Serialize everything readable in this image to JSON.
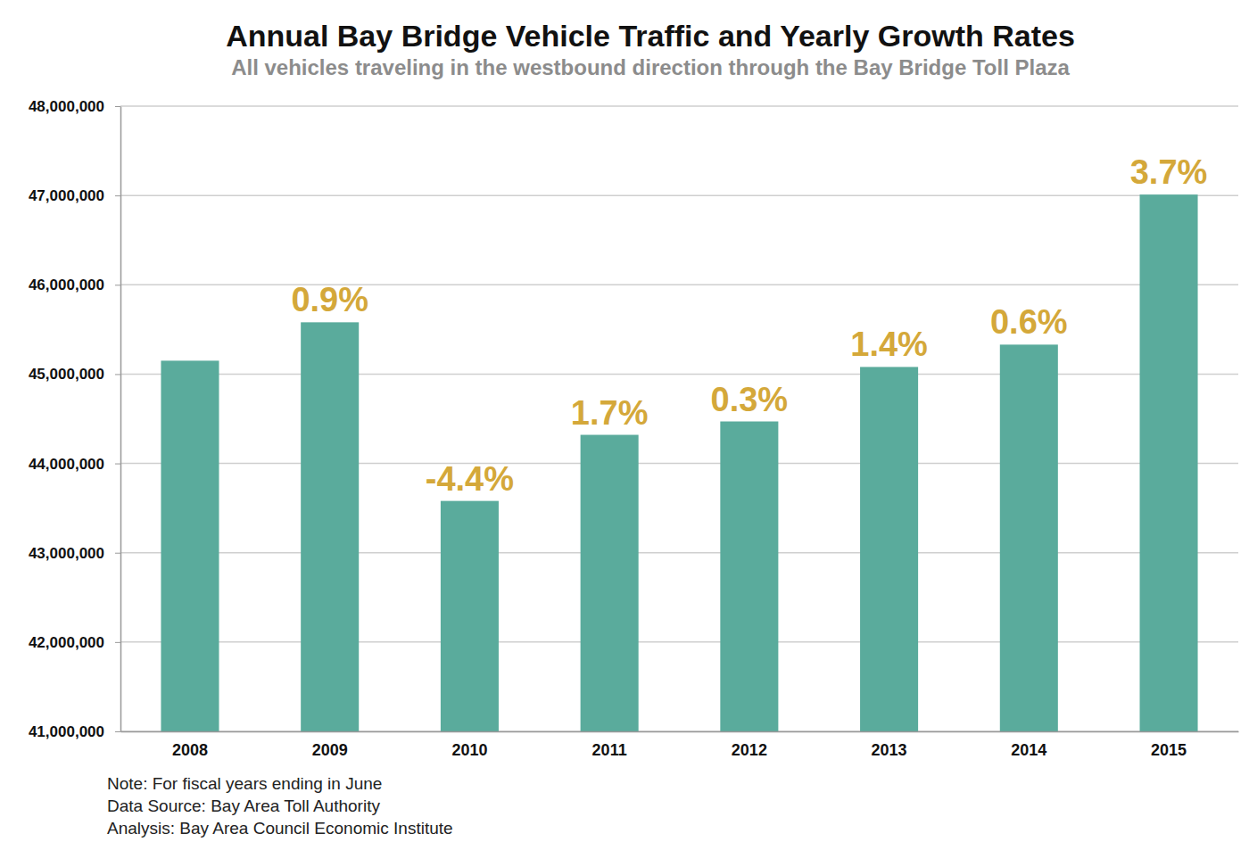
{
  "chart_data": {
    "type": "bar",
    "title": "Annual Bay Bridge Vehicle Traffic and Yearly Growth Rates",
    "subtitle": "All vehicles traveling in the westbound direction through the Bay Bridge Toll Plaza",
    "categories": [
      "2008",
      "2009",
      "2010",
      "2011",
      "2012",
      "2013",
      "2014",
      "2015"
    ],
    "values": [
      45150000,
      45580000,
      43580000,
      44320000,
      44470000,
      45080000,
      45330000,
      47010000
    ],
    "growth_labels": [
      null,
      "0.9%",
      "-4.4%",
      "1.7%",
      "0.3%",
      "1.4%",
      "0.6%",
      "3.7%"
    ],
    "color": "#5aab9c",
    "ylim": [
      41000000,
      48000000
    ],
    "yticks": [
      {
        "value": 41000000,
        "label": "41,000,000"
      },
      {
        "value": 42000000,
        "label": "42,000,000"
      },
      {
        "value": 43000000,
        "label": "43,000,000"
      },
      {
        "value": 44000000,
        "label": "44,000,000"
      },
      {
        "value": 45000000,
        "label": "45,000,000"
      },
      {
        "value": 46000000,
        "label": "46,000,000"
      },
      {
        "value": 47000000,
        "label": "47,000,000"
      },
      {
        "value": 48000000,
        "label": "48,000,000"
      }
    ],
    "grid": true,
    "notes": [
      "Note: For fiscal years ending in June",
      "Data Source: Bay Area Toll Authority",
      "Analysis: Bay Area Council Economic Institute"
    ]
  }
}
